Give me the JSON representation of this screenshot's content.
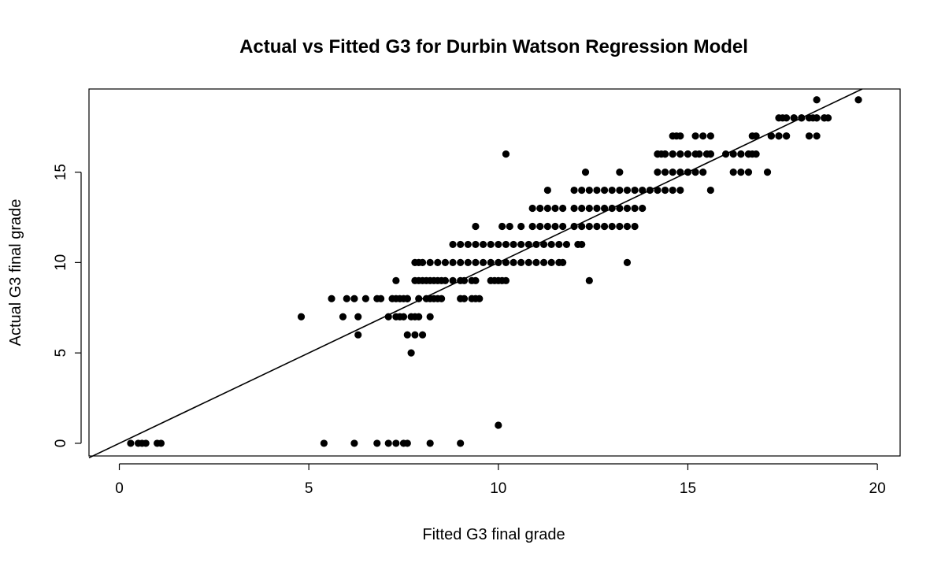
{
  "chart_data": {
    "type": "scatter",
    "title": "Actual vs Fitted G3 for Durbin Watson Regression Model",
    "xlabel": "Fitted G3 final grade",
    "ylabel": "Actual G3 final grade",
    "xlim": [
      -0.8,
      20.6
    ],
    "ylim": [
      -0.7,
      19.6
    ],
    "xticks": [
      0,
      5,
      10,
      15,
      20
    ],
    "yticks": [
      0,
      5,
      10,
      15
    ],
    "grid": false,
    "legend": "none",
    "reference_line": {
      "intercept": 0,
      "slope": 1
    },
    "series": [
      {
        "point_color": "#000000",
        "x": [
          0.3,
          0.5,
          0.6,
          0.7,
          1.0,
          1.1,
          5.4,
          6.2,
          6.8,
          7.1,
          7.3,
          7.5,
          7.6,
          8.2,
          9.0,
          10.0,
          4.8,
          5.6,
          5.9,
          6.0,
          6.2,
          6.3,
          6.5,
          6.8,
          6.9,
          6.3,
          7.1,
          7.3,
          7.4,
          7.5,
          7.6,
          7.6,
          7.7,
          7.8,
          7.9,
          8.0,
          8.2,
          7.2,
          7.3,
          7.4,
          7.5,
          7.6,
          7.7,
          7.8,
          7.9,
          8.1,
          8.2,
          8.3,
          8.4,
          8.5,
          9.0,
          9.1,
          9.3,
          9.4,
          9.5,
          7.3,
          7.8,
          7.9,
          8.0,
          8.1,
          8.2,
          8.3,
          8.4,
          8.5,
          8.6,
          8.8,
          9.0,
          9.1,
          9.3,
          9.4,
          9.8,
          9.9,
          10.0,
          10.1,
          10.2,
          7.8,
          7.9,
          8.0,
          8.2,
          8.4,
          8.6,
          8.8,
          9.0,
          9.2,
          9.4,
          9.6,
          9.8,
          10.0,
          10.2,
          10.4,
          10.6,
          10.8,
          11.0,
          11.2,
          11.4,
          11.6,
          11.7,
          8.8,
          9.0,
          9.2,
          9.4,
          9.6,
          9.8,
          10.0,
          10.2,
          10.4,
          10.6,
          10.8,
          11.0,
          11.2,
          11.4,
          11.6,
          11.8,
          12.1,
          12.2,
          9.4,
          10.1,
          10.3,
          10.6,
          10.9,
          11.1,
          11.3,
          11.5,
          11.7,
          12.0,
          12.2,
          12.4,
          12.6,
          12.8,
          13.0,
          13.2,
          13.4,
          13.6,
          10.9,
          11.1,
          11.3,
          11.5,
          11.7,
          12.0,
          12.2,
          12.4,
          12.6,
          12.8,
          13.0,
          13.2,
          13.4,
          13.6,
          13.8,
          11.3,
          12.0,
          12.2,
          12.4,
          12.6,
          12.8,
          13.0,
          13.2,
          13.4,
          13.6,
          13.8,
          14.0,
          14.2,
          14.4,
          14.6,
          14.8,
          12.3,
          12.4,
          13.2,
          13.4,
          14.2,
          14.4,
          14.6,
          14.8,
          15.0,
          15.2,
          15.4,
          15.6,
          16.2,
          16.4,
          16.6,
          17.1,
          10.2,
          14.2,
          14.4,
          14.6,
          14.8,
          15.0,
          15.3,
          15.5,
          15.6,
          16.0,
          16.2,
          16.4,
          16.6,
          16.7,
          14.2,
          14.3,
          14.4,
          14.6,
          14.8,
          15.0,
          15.2,
          15.5,
          15.6,
          16.4,
          16.6,
          16.8,
          17.2,
          17.4,
          17.6,
          18.2,
          18.4,
          14.6,
          14.7,
          14.8,
          15.2,
          15.4,
          15.6,
          16.7,
          16.8,
          17.2,
          17.4,
          17.6,
          17.8,
          18.0,
          18.3,
          18.4,
          18.6,
          17.4,
          17.5,
          17.6,
          17.8,
          18.0,
          18.2,
          18.4,
          18.6,
          18.7,
          18.4,
          19.5
        ],
        "y": [
          0,
          0,
          0,
          0,
          0,
          0,
          0,
          0,
          0,
          0,
          0,
          0,
          0,
          0,
          0,
          1,
          7,
          8,
          7,
          8,
          8,
          7,
          8,
          8,
          8,
          6,
          7,
          7,
          7,
          7,
          8,
          6,
          5,
          6,
          7,
          6,
          7,
          8,
          8,
          8,
          8,
          8,
          7,
          7,
          8,
          8,
          8,
          8,
          8,
          8,
          8,
          8,
          8,
          8,
          8,
          9,
          9,
          9,
          9,
          9,
          9,
          9,
          9,
          9,
          9,
          9,
          9,
          9,
          9,
          9,
          9,
          9,
          9,
          9,
          9,
          10,
          10,
          10,
          10,
          10,
          10,
          10,
          10,
          10,
          10,
          10,
          10,
          10,
          10,
          10,
          10,
          10,
          10,
          10,
          10,
          10,
          10,
          11,
          11,
          11,
          11,
          11,
          11,
          11,
          11,
          11,
          11,
          11,
          11,
          11,
          11,
          11,
          11,
          11,
          11,
          12,
          12,
          12,
          12,
          12,
          12,
          12,
          12,
          12,
          12,
          12,
          12,
          12,
          12,
          12,
          12,
          12,
          12,
          13,
          13,
          13,
          13,
          13,
          13,
          13,
          13,
          13,
          13,
          13,
          13,
          13,
          13,
          13,
          14,
          14,
          14,
          14,
          14,
          14,
          14,
          14,
          14,
          14,
          14,
          14,
          14,
          14,
          14,
          14,
          15,
          9,
          15,
          10,
          15,
          15,
          15,
          15,
          15,
          15,
          15,
          14,
          15,
          15,
          15,
          15,
          16,
          16,
          16,
          16,
          16,
          16,
          16,
          16,
          16,
          16,
          16,
          16,
          16,
          16,
          16,
          16,
          16,
          16,
          16,
          16,
          16,
          16,
          16,
          16,
          16,
          16,
          17,
          17,
          17,
          17,
          17,
          17,
          17,
          17,
          17,
          17,
          17,
          17,
          17,
          17,
          17,
          17,
          18,
          18,
          18,
          18,
          18,
          18,
          18,
          18,
          18,
          18,
          18,
          18,
          18,
          18,
          19,
          19
        ]
      }
    ]
  }
}
